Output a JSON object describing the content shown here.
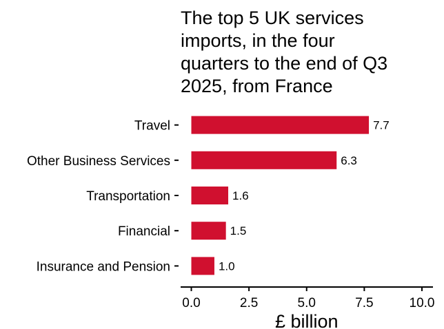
{
  "chart_data": {
    "type": "bar",
    "orientation": "horizontal",
    "title_lines": [
      "The top 5 UK services",
      "imports, in the four",
      "quarters to the end of Q3",
      "2025, from France"
    ],
    "categories": [
      "Travel",
      "Other Business Services",
      "Transportation",
      "Financial",
      "Insurance and Pension"
    ],
    "values": [
      7.7,
      6.3,
      1.6,
      1.5,
      1.0
    ],
    "value_labels": [
      "7.7",
      "6.3",
      "1.6",
      "1.5",
      "1.0"
    ],
    "xlabel": "£ billion",
    "ylabel": "",
    "xlim": [
      0,
      10
    ],
    "xticks": [
      0,
      2.5,
      5,
      7.5,
      10
    ],
    "xtick_labels": [
      "0.0",
      "2.5",
      "5.0",
      "7.5",
      "10.0"
    ],
    "grid": false,
    "bar_color": "#d0102f"
  }
}
